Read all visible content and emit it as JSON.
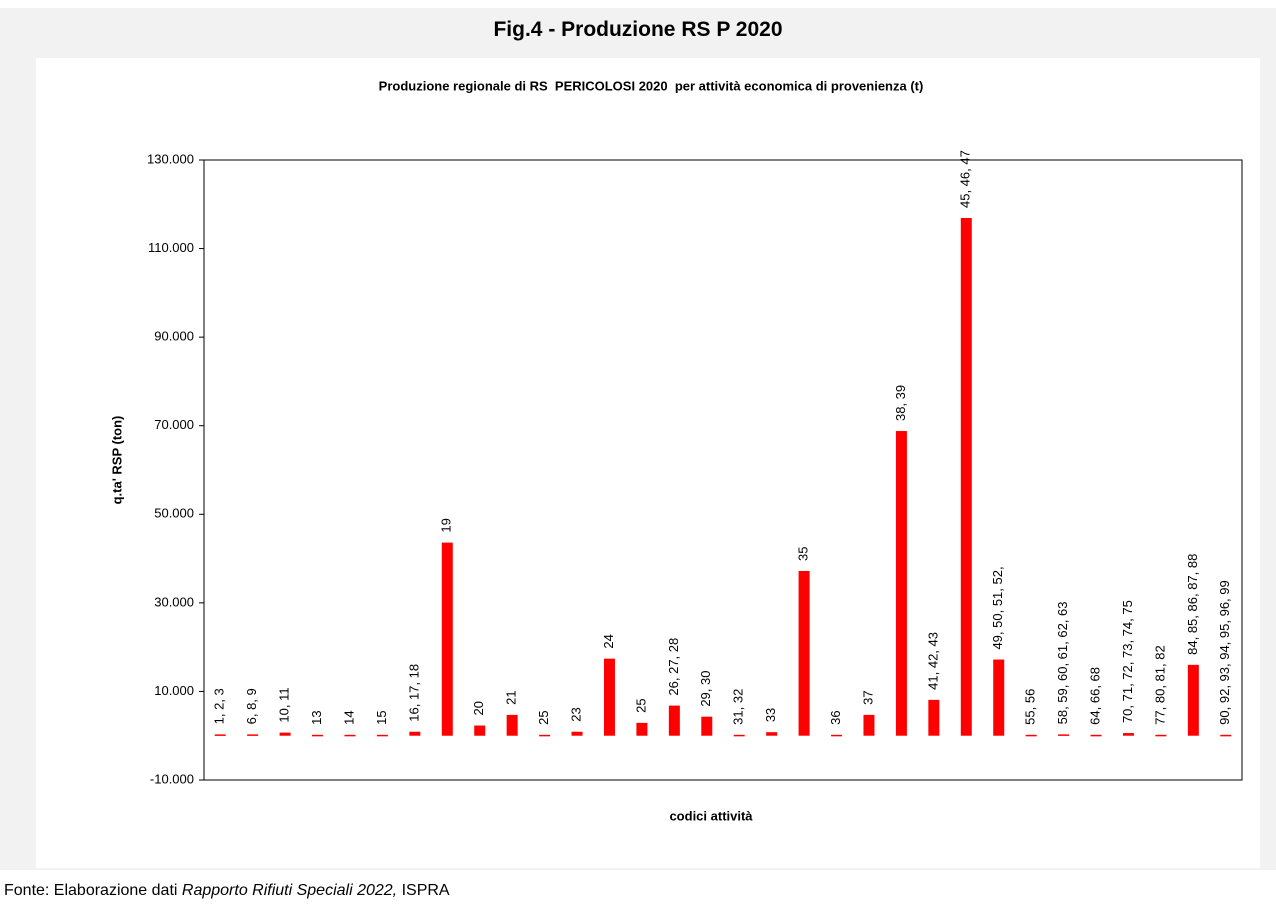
{
  "header": {
    "title": "Fig.4 - Produzione RS P 2020"
  },
  "chart_data": {
    "type": "bar",
    "title": "Produzione regionale di RS  PERICOLOSI 2020  per attività economica di provenienza (t)",
    "x_label": "codici attività",
    "y_label": "q.ta' RSP (ton)",
    "categories": [
      "1, 2, 3",
      "6, 8, 9",
      "10, 11",
      "13",
      "14",
      "15",
      "16, 17, 18",
      "19",
      "20",
      "21",
      "25",
      "23",
      "24",
      "25",
      "26, 27, 28",
      "29, 30",
      "31, 32",
      "33",
      "35",
      "36",
      "37",
      "38, 39",
      "41, 42, 43",
      "45, 46, 47",
      "49, 50, 51, 52,",
      "55, 56",
      "58, 59, 60, 61, 62, 63",
      "64, 66, 68",
      "70, 71, 72, 73, 74, 75",
      "77, 80, 81, 82",
      "84, 85, 86, 87, 88",
      "90, 92, 93, 94, 95, 96, 99"
    ],
    "values": [
      300,
      300,
      700,
      200,
      200,
      200,
      900,
      43600,
      2300,
      4700,
      200,
      900,
      17400,
      2900,
      6800,
      4300,
      200,
      800,
      37200,
      200,
      4700,
      68800,
      8100,
      116900,
      17200,
      200,
      300,
      200,
      600,
      200,
      16000,
      200
    ],
    "color": "#ff0000",
    "ylim": [
      -10000,
      130000
    ],
    "yticks": [
      {
        "value": -10000,
        "label": "-10.000"
      },
      {
        "value": 10000,
        "label": "10.000"
      },
      {
        "value": 30000,
        "label": "30.000"
      },
      {
        "value": 50000,
        "label": "50.000"
      },
      {
        "value": 70000,
        "label": "70.000"
      },
      {
        "value": 90000,
        "label": "90.000"
      },
      {
        "value": 110000,
        "label": "110.000"
      },
      {
        "value": 130000,
        "label": "130.000"
      }
    ],
    "grid": false
  },
  "source": {
    "prefix": "Fonte: Elaborazione dati ",
    "italic": "Rapporto Rifiuti Speciali 2022,",
    "suffix": " ISPRA"
  }
}
